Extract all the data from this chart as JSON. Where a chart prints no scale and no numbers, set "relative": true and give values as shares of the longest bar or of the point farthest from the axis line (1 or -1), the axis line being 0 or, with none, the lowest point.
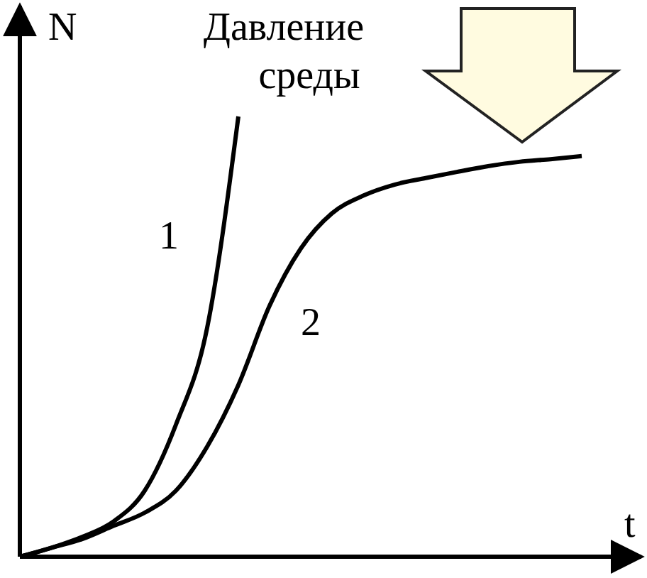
{
  "chart_data": {
    "type": "line",
    "relative": true,
    "xlabel": "t",
    "ylabel": "N",
    "annotations": [
      "Давление среды"
    ],
    "marker": "none",
    "line_style": "solid",
    "categories": [
      null,
      null,
      null,
      null,
      null,
      null,
      null,
      null,
      null,
      null,
      null,
      null,
      null,
      null,
      null,
      null,
      null,
      null,
      null
    ],
    "series": [
      {
        "name": "1",
        "color": "#000000",
        "values": [
          0,
          0.02,
          0.045,
          0.08,
          0.15,
          0.3,
          0.52,
          1.0,
          null,
          null,
          null,
          null,
          null,
          null,
          null,
          null,
          null,
          null,
          null
        ]
      },
      {
        "name": "2",
        "color": "#000000",
        "values": [
          0,
          0.02,
          0.04,
          0.07,
          0.1,
          0.15,
          0.25,
          0.39,
          0.57,
          0.7,
          0.78,
          0.82,
          0.845,
          0.86,
          0.874,
          0.887,
          0.897,
          0.903,
          0.91
        ]
      }
    ]
  }
}
